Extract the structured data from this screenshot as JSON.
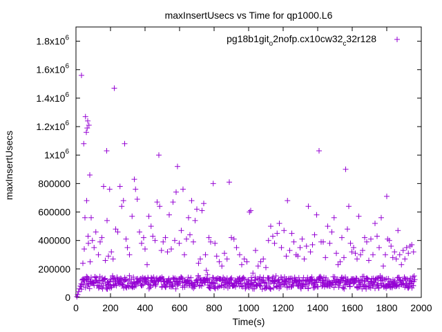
{
  "chart_data": {
    "type": "scatter",
    "title": "maxInsertUsecs vs Time for qp1000.L6",
    "xlabel": "Time(s)",
    "ylabel": "maxInsertUsecs",
    "xlim": [
      0,
      2000
    ],
    "ylim": [
      0,
      1900000
    ],
    "x_ticks": [
      0,
      200,
      400,
      600,
      800,
      1000,
      1200,
      1400,
      1600,
      1800,
      2000
    ],
    "x_tick_labels": [
      "0",
      "200",
      "400",
      "600",
      "800",
      "1000",
      "1200",
      "1400",
      "1600",
      "1800",
      "2000"
    ],
    "y_ticks": [
      0,
      200000,
      400000,
      600000,
      800000,
      1000000,
      1200000,
      1400000,
      1600000,
      1800000
    ],
    "y_tick_labels": [
      {
        "base": "0",
        "exp": ""
      },
      {
        "base": "200000",
        "exp": ""
      },
      {
        "base": "400000",
        "exp": ""
      },
      {
        "base": "600000",
        "exp": ""
      },
      {
        "base": "800000",
        "exp": ""
      },
      {
        "base": "1x10",
        "exp": "6"
      },
      {
        "base": "1.2x10",
        "exp": "6"
      },
      {
        "base": "1.4x10",
        "exp": "6"
      },
      {
        "base": "1.6x10",
        "exp": "6"
      },
      {
        "base": "1.8x10",
        "exp": "6"
      }
    ],
    "legend": {
      "position": "top-right",
      "parts": [
        {
          "text": "pg18b1git",
          "sub": false
        },
        {
          "text": "o",
          "sub": true
        },
        {
          "text": "2nofp.cx10cw32",
          "sub": false
        },
        {
          "text": "c",
          "sub": true
        },
        {
          "text": "32r128",
          "sub": false
        }
      ]
    },
    "marker_color": "#9400d3",
    "grid": false,
    "series": [
      {
        "marker": "+",
        "points": [
          [
            5,
            5000
          ],
          [
            10,
            20000
          ],
          [
            15,
            40000
          ],
          [
            20,
            60000
          ],
          [
            25,
            80000
          ],
          [
            30,
            95000
          ],
          [
            32,
            1560000
          ],
          [
            40,
            240000
          ],
          [
            45,
            1080000
          ],
          [
            48,
            340000
          ],
          [
            52,
            560000
          ],
          [
            55,
            1270000
          ],
          [
            60,
            1160000
          ],
          [
            62,
            680000
          ],
          [
            65,
            1190000
          ],
          [
            68,
            1240000
          ],
          [
            70,
            430000
          ],
          [
            72,
            380000
          ],
          [
            75,
            1210000
          ],
          [
            80,
            860000
          ],
          [
            82,
            250000
          ],
          [
            88,
            560000
          ],
          [
            95,
            400000
          ],
          [
            105,
            350000
          ],
          [
            115,
            460000
          ],
          [
            130,
            300000
          ],
          [
            140,
            390000
          ],
          [
            150,
            420000
          ],
          [
            160,
            780000
          ],
          [
            170,
            260000
          ],
          [
            178,
            1030000
          ],
          [
            180,
            540000
          ],
          [
            188,
            290000
          ],
          [
            195,
            760000
          ],
          [
            205,
            320000
          ],
          [
            215,
            270000
          ],
          [
            222,
            1470000
          ],
          [
            230,
            480000
          ],
          [
            242,
            460000
          ],
          [
            255,
            780000
          ],
          [
            265,
            640000
          ],
          [
            275,
            680000
          ],
          [
            282,
            1080000
          ],
          [
            290,
            410000
          ],
          [
            298,
            350000
          ],
          [
            310,
            300000
          ],
          [
            325,
            570000
          ],
          [
            338,
            830000
          ],
          [
            345,
            760000
          ],
          [
            355,
            690000
          ],
          [
            368,
            460000
          ],
          [
            380,
            380000
          ],
          [
            392,
            420000
          ],
          [
            400,
            340000
          ],
          [
            412,
            230000
          ],
          [
            422,
            570000
          ],
          [
            435,
            500000
          ],
          [
            445,
            430000
          ],
          [
            458,
            400000
          ],
          [
            470,
            670000
          ],
          [
            480,
            1000000
          ],
          [
            485,
            640000
          ],
          [
            495,
            330000
          ],
          [
            505,
            390000
          ],
          [
            518,
            420000
          ],
          [
            530,
            320000
          ],
          [
            540,
            580000
          ],
          [
            552,
            340000
          ],
          [
            562,
            670000
          ],
          [
            572,
            400000
          ],
          [
            580,
            740000
          ],
          [
            588,
            920000
          ],
          [
            598,
            380000
          ],
          [
            610,
            470000
          ],
          [
            620,
            760000
          ],
          [
            628,
            300000
          ],
          [
            640,
            410000
          ],
          [
            652,
            560000
          ],
          [
            660,
            440000
          ],
          [
            670,
            680000
          ],
          [
            680,
            390000
          ],
          [
            690,
            540000
          ],
          [
            700,
            620000
          ],
          [
            710,
            240000
          ],
          [
            720,
            270000
          ],
          [
            730,
            610000
          ],
          [
            740,
            660000
          ],
          [
            750,
            300000
          ],
          [
            755,
            190000
          ],
          [
            762,
            160000
          ],
          [
            770,
            420000
          ],
          [
            780,
            390000
          ],
          [
            795,
            800000
          ],
          [
            805,
            380000
          ],
          [
            815,
            290000
          ],
          [
            830,
            250000
          ],
          [
            845,
            220000
          ],
          [
            860,
            310000
          ],
          [
            875,
            270000
          ],
          [
            888,
            810000
          ],
          [
            900,
            420000
          ],
          [
            915,
            410000
          ],
          [
            930,
            350000
          ],
          [
            948,
            300000
          ],
          [
            960,
            230000
          ],
          [
            975,
            270000
          ],
          [
            990,
            250000
          ],
          [
            1005,
            600000
          ],
          [
            1012,
            610000
          ],
          [
            1025,
            170000
          ],
          [
            1040,
            330000
          ],
          [
            1055,
            220000
          ],
          [
            1070,
            250000
          ],
          [
            1085,
            270000
          ],
          [
            1100,
            210000
          ],
          [
            1115,
            400000
          ],
          [
            1128,
            500000
          ],
          [
            1140,
            430000
          ],
          [
            1150,
            380000
          ],
          [
            1165,
            450000
          ],
          [
            1178,
            520000
          ],
          [
            1190,
            350000
          ],
          [
            1205,
            470000
          ],
          [
            1218,
            290000
          ],
          [
            1225,
            680000
          ],
          [
            1238,
            330000
          ],
          [
            1250,
            450000
          ],
          [
            1262,
            390000
          ],
          [
            1275,
            300000
          ],
          [
            1285,
            290000
          ],
          [
            1298,
            350000
          ],
          [
            1310,
            410000
          ],
          [
            1322,
            270000
          ],
          [
            1335,
            360000
          ],
          [
            1346,
            640000
          ],
          [
            1358,
            320000
          ],
          [
            1370,
            370000
          ],
          [
            1382,
            440000
          ],
          [
            1394,
            580000
          ],
          [
            1408,
            1030000
          ],
          [
            1420,
            390000
          ],
          [
            1432,
            390000
          ],
          [
            1445,
            280000
          ],
          [
            1458,
            500000
          ],
          [
            1470,
            380000
          ],
          [
            1482,
            460000
          ],
          [
            1495,
            560000
          ],
          [
            1508,
            310000
          ],
          [
            1518,
            230000
          ],
          [
            1530,
            250000
          ],
          [
            1540,
            420000
          ],
          [
            1552,
            280000
          ],
          [
            1562,
            900000
          ],
          [
            1572,
            480000
          ],
          [
            1580,
            640000
          ],
          [
            1590,
            380000
          ],
          [
            1598,
            320000
          ],
          [
            1608,
            350000
          ],
          [
            1618,
            310000
          ],
          [
            1628,
            270000
          ],
          [
            1638,
            570000
          ],
          [
            1648,
            300000
          ],
          [
            1660,
            330000
          ],
          [
            1672,
            420000
          ],
          [
            1684,
            390000
          ],
          [
            1696,
            260000
          ],
          [
            1708,
            410000
          ],
          [
            1720,
            300000
          ],
          [
            1732,
            520000
          ],
          [
            1744,
            430000
          ],
          [
            1756,
            350000
          ],
          [
            1768,
            560000
          ],
          [
            1780,
            220000
          ],
          [
            1792,
            300000
          ],
          [
            1800,
            710000
          ],
          [
            1805,
            410000
          ],
          [
            1815,
            400000
          ],
          [
            1825,
            360000
          ],
          [
            1835,
            280000
          ],
          [
            1845,
            320000
          ],
          [
            1855,
            270000
          ],
          [
            1865,
            470000
          ],
          [
            1875,
            300000
          ],
          [
            1885,
            230000
          ],
          [
            1895,
            330000
          ],
          [
            1905,
            270000
          ],
          [
            1915,
            350000
          ],
          [
            1925,
            310000
          ],
          [
            1935,
            360000
          ],
          [
            1945,
            370000
          ],
          [
            1955,
            320000
          ]
        ],
        "baseline_band": {
          "x_start": 30,
          "x_end": 1960,
          "x_step": 5,
          "center_values": [
            95000,
            105000,
            110000,
            100000,
            108000,
            97000,
            115000,
            110000,
            105000,
            98000
          ],
          "spread": 75000
        }
      }
    ]
  }
}
